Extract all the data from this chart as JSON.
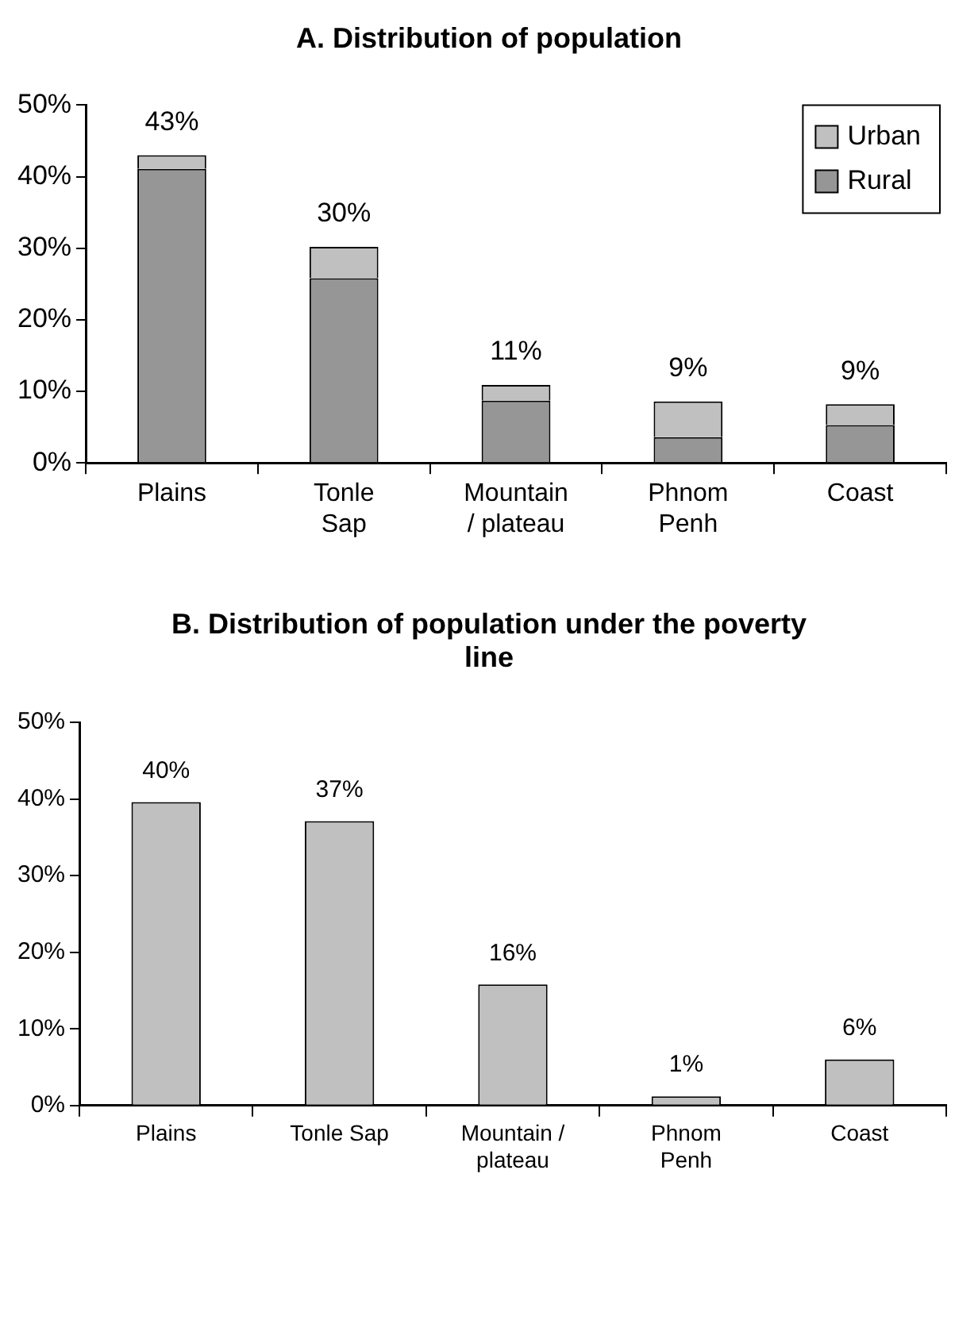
{
  "chart_data": [
    {
      "type": "bar",
      "title": "A. Distribution of population",
      "categories": [
        "Plains",
        "Tonle Sap",
        "Mountain / plateau",
        "Phnom Penh",
        "Coast"
      ],
      "stacked": true,
      "series": [
        {
          "name": "Rural",
          "color": "#969696",
          "values": [
            41.1,
            25.8,
            8.7,
            3.6,
            5.3
          ]
        },
        {
          "name": "Urban",
          "color": "#c0c0c0",
          "values": [
            1.9,
            4.4,
            2.2,
            5.0,
            2.9
          ]
        }
      ],
      "totals": [
        "43%",
        "30%",
        "11%",
        "9%",
        "9%"
      ],
      "ylim": [
        0,
        50
      ],
      "yticks": [
        {
          "value": 0,
          "label": "0%"
        },
        {
          "value": 10,
          "label": "10%"
        },
        {
          "value": 20,
          "label": "20%"
        },
        {
          "value": 30,
          "label": "30%"
        },
        {
          "value": 40,
          "label": "40%"
        },
        {
          "value": 50,
          "label": "50%"
        }
      ],
      "grid": false,
      "legend": "top right"
    },
    {
      "type": "bar",
      "title": "B. Distribution of population under the poverty line",
      "categories": [
        "Plains",
        "Tonle Sap",
        "Mountain / plateau",
        "Phnom Penh",
        "Coast"
      ],
      "values": [
        39.6,
        37.1,
        15.8,
        1.2,
        6.0
      ],
      "color": "#c0c0c0",
      "value_labels": [
        "40%",
        "37%",
        "16%",
        "1%",
        "6%"
      ],
      "ylim": [
        0,
        50
      ],
      "yticks": [
        {
          "value": 0,
          "label": "0%"
        },
        {
          "value": 10,
          "label": "10%"
        },
        {
          "value": 20,
          "label": "20%"
        },
        {
          "value": 30,
          "label": "30%"
        },
        {
          "value": 40,
          "label": "40%"
        },
        {
          "value": 50,
          "label": "50%"
        }
      ],
      "grid": false
    }
  ]
}
